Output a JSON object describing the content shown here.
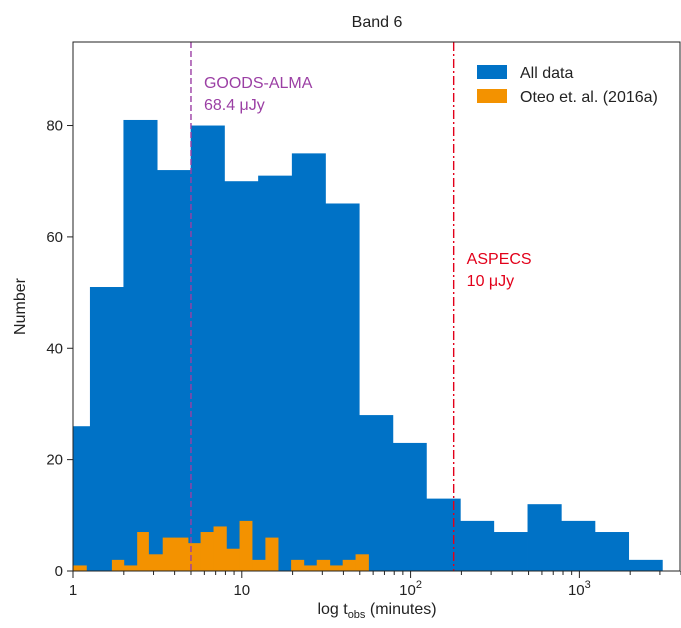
{
  "chart_data": {
    "type": "bar",
    "title": "Band 6",
    "xlabel": "log t",
    "xlabel_sub": "obs",
    "xlabel_suffix": " (minutes)",
    "ylabel": "Number",
    "x_scale": "log",
    "xlim": [
      1,
      4000
    ],
    "ylim": [
      0,
      95
    ],
    "y_ticks": [
      0,
      20,
      40,
      60,
      80
    ],
    "x_ticks": [
      {
        "value": 1,
        "label": "1",
        "exp": ""
      },
      {
        "value": 10,
        "label": "10",
        "exp": ""
      },
      {
        "value": 100,
        "label": "10",
        "exp": "2"
      },
      {
        "value": 1000,
        "label": "10",
        "exp": "3"
      }
    ],
    "legend_position": "top-right",
    "series": [
      {
        "name": "All data",
        "color": "#0072c6",
        "bins": [
          {
            "x0": 1.0,
            "x1": 1.26,
            "y": 26
          },
          {
            "x0": 1.26,
            "x1": 1.99,
            "y": 51
          },
          {
            "x0": 1.99,
            "x1": 3.15,
            "y": 81
          },
          {
            "x0": 3.15,
            "x1": 4.98,
            "y": 72
          },
          {
            "x0": 4.98,
            "x1": 7.89,
            "y": 80
          },
          {
            "x0": 7.89,
            "x1": 12.5,
            "y": 70
          },
          {
            "x0": 12.5,
            "x1": 19.8,
            "y": 71
          },
          {
            "x0": 19.8,
            "x1": 31.3,
            "y": 75
          },
          {
            "x0": 31.3,
            "x1": 49.6,
            "y": 66
          },
          {
            "x0": 49.6,
            "x1": 78.5,
            "y": 28
          },
          {
            "x0": 78.5,
            "x1": 124,
            "y": 23
          },
          {
            "x0": 124,
            "x1": 197,
            "y": 13
          },
          {
            "x0": 197,
            "x1": 311,
            "y": 9
          },
          {
            "x0": 311,
            "x1": 493,
            "y": 7
          },
          {
            "x0": 493,
            "x1": 781,
            "y": 12
          },
          {
            "x0": 781,
            "x1": 1236,
            "y": 9
          },
          {
            "x0": 1236,
            "x1": 1958,
            "y": 7
          },
          {
            "x0": 1958,
            "x1": 3100,
            "y": 2
          }
        ]
      },
      {
        "name": "Oteo et. al. (2016a)",
        "color": "#f39200",
        "bins": [
          {
            "x0": 1.0,
            "x1": 1.2,
            "y": 1
          },
          {
            "x0": 1.2,
            "x1": 1.4,
            "y": 0
          },
          {
            "x0": 1.4,
            "x1": 1.7,
            "y": 0
          },
          {
            "x0": 1.7,
            "x1": 2.0,
            "y": 2
          },
          {
            "x0": 2.0,
            "x1": 2.4,
            "y": 1
          },
          {
            "x0": 2.4,
            "x1": 2.8,
            "y": 7
          },
          {
            "x0": 2.8,
            "x1": 3.4,
            "y": 3
          },
          {
            "x0": 3.4,
            "x1": 4.0,
            "y": 6
          },
          {
            "x0": 4.0,
            "x1": 4.8,
            "y": 6
          },
          {
            "x0": 4.8,
            "x1": 5.7,
            "y": 5
          },
          {
            "x0": 5.7,
            "x1": 6.8,
            "y": 7
          },
          {
            "x0": 6.8,
            "x1": 8.1,
            "y": 8
          },
          {
            "x0": 8.1,
            "x1": 9.7,
            "y": 4
          },
          {
            "x0": 9.7,
            "x1": 11.5,
            "y": 9
          },
          {
            "x0": 11.5,
            "x1": 13.8,
            "y": 2
          },
          {
            "x0": 13.8,
            "x1": 16.4,
            "y": 6
          },
          {
            "x0": 16.4,
            "x1": 19.6,
            "y": 0
          },
          {
            "x0": 19.6,
            "x1": 23.3,
            "y": 2
          },
          {
            "x0": 23.3,
            "x1": 27.8,
            "y": 1
          },
          {
            "x0": 27.8,
            "x1": 33.2,
            "y": 2
          },
          {
            "x0": 33.2,
            "x1": 39.6,
            "y": 1
          },
          {
            "x0": 39.6,
            "x1": 47.2,
            "y": 2
          },
          {
            "x0": 47.2,
            "x1": 56.3,
            "y": 3
          }
        ]
      }
    ],
    "annotations": [
      {
        "name": "goods-alma",
        "x": 5.0,
        "label_line1": "GOODS-ALMA",
        "label_line2": "68.4 μJy",
        "color": "#9b3fa4",
        "line_style": "dashed"
      },
      {
        "name": "aspecs",
        "x": 180,
        "label_line1": "ASPECS",
        "label_line2": "10 μJy",
        "color": "#e2001a",
        "line_style": "dashdot"
      }
    ]
  }
}
